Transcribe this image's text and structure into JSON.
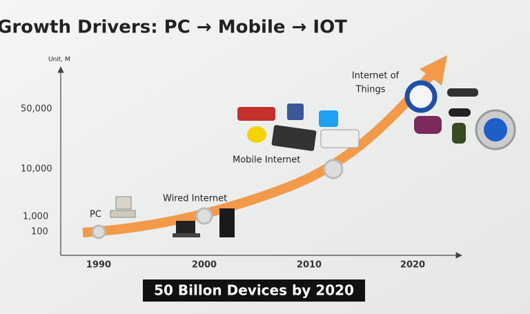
{
  "title": "Growth Drivers: PC → Mobile → IOT",
  "y_axis": {
    "label": "Unit, M",
    "ticks": [
      "50,000",
      "10,000",
      "1,000",
      "100"
    ]
  },
  "x_axis": {
    "ticks": [
      "1990",
      "2000",
      "2010",
      "2020"
    ]
  },
  "milestones": [
    {
      "label": [
        "PC"
      ]
    },
    {
      "label": [
        "Wired Internet"
      ]
    },
    {
      "label": [
        "Mobile Internet"
      ]
    },
    {
      "label": [
        "Internet of",
        "Things"
      ]
    }
  ],
  "banner": "50 Billon Devices by 2020"
}
